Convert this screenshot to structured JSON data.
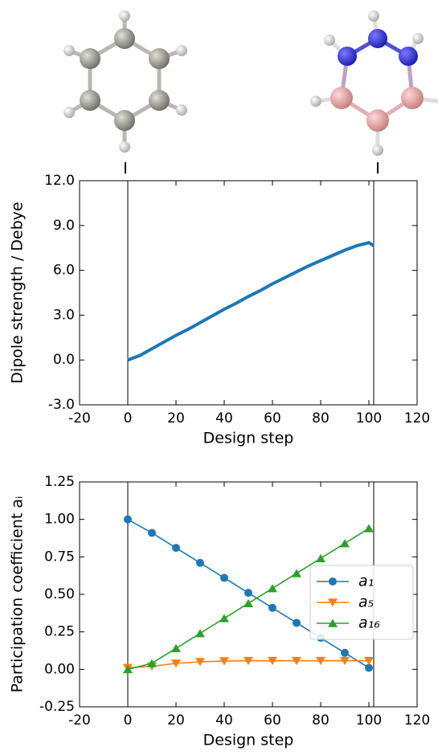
{
  "chart_data": [
    {
      "type": "line",
      "xlabel": "Design step",
      "ylabel": "Dipole strength / Debye",
      "xlim": [
        -20,
        120
      ],
      "xticks": [
        -20,
        0,
        20,
        40,
        60,
        80,
        100,
        120
      ],
      "ylim": [
        -3,
        12
      ],
      "yticks": [
        {
          "value": -3,
          "label": "-3.0"
        },
        {
          "value": 0,
          "label": "0.0"
        },
        {
          "value": 3,
          "label": "3.0"
        },
        {
          "value": 6,
          "label": "6.0"
        },
        {
          "value": 9,
          "label": "9.0"
        },
        {
          "value": 12,
          "label": "12.0"
        }
      ],
      "vlines": [
        0,
        102
      ],
      "series": [
        {
          "color": "#1f77b4",
          "marker": "none",
          "x": [
            0,
            5,
            10,
            15,
            20,
            25,
            30,
            35,
            40,
            45,
            50,
            55,
            60,
            65,
            70,
            75,
            80,
            85,
            90,
            95,
            100,
            102
          ],
          "values": [
            0,
            0.3,
            0.75,
            1.2,
            1.65,
            2.05,
            2.5,
            2.95,
            3.4,
            3.8,
            4.25,
            4.65,
            5.1,
            5.5,
            5.9,
            6.3,
            6.65,
            7.0,
            7.35,
            7.65,
            7.85,
            7.65
          ]
        }
      ]
    },
    {
      "type": "line",
      "xlabel": "Design step",
      "ylabel": "Participation coefficient aᵢ",
      "xlim": [
        -20,
        120
      ],
      "xticks": [
        -20,
        0,
        20,
        40,
        60,
        80,
        100,
        120
      ],
      "ylim": [
        -0.25,
        1.25
      ],
      "yticks": [
        {
          "value": -0.25,
          "label": "-0.25"
        },
        {
          "value": 0,
          "label": "0.00"
        },
        {
          "value": 0.25,
          "label": "0.25"
        },
        {
          "value": 0.5,
          "label": "0.50"
        },
        {
          "value": 0.75,
          "label": "0.75"
        },
        {
          "value": 1,
          "label": "1.00"
        },
        {
          "value": 1.25,
          "label": "1.25"
        }
      ],
      "vlines": [
        0,
        102
      ],
      "legend": "center right",
      "series": [
        {
          "name": "a₁",
          "color": "#1f77b4",
          "marker": "o",
          "x": [
            0,
            10,
            20,
            30,
            40,
            50,
            60,
            70,
            80,
            90,
            100
          ],
          "values": [
            1.0,
            0.91,
            0.81,
            0.71,
            0.61,
            0.51,
            0.41,
            0.31,
            0.21,
            0.11,
            0.01
          ]
        },
        {
          "name": "a₅",
          "color": "#ff7f0e",
          "marker": "v",
          "x": [
            0,
            10,
            20,
            30,
            40,
            50,
            60,
            70,
            80,
            90,
            100
          ],
          "values": [
            0.01,
            0.02,
            0.04,
            0.05,
            0.055,
            0.057,
            0.057,
            0.057,
            0.057,
            0.057,
            0.057
          ]
        },
        {
          "name": "a₁₆",
          "color": "#2ca02c",
          "marker": "^",
          "x": [
            0,
            10,
            20,
            30,
            40,
            50,
            60,
            70,
            80,
            90,
            100
          ],
          "values": [
            0,
            0.04,
            0.14,
            0.24,
            0.34,
            0.44,
            0.54,
            0.64,
            0.74,
            0.84,
            0.94
          ]
        }
      ]
    }
  ]
}
